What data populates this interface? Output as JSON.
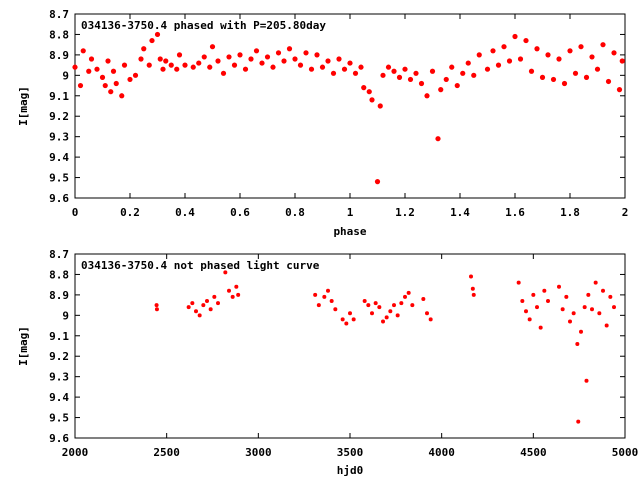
{
  "chart_data": [
    {
      "type": "scatter",
      "title": "034136-3750.4 phased with P=205.80day",
      "xlabel": "phase",
      "ylabel": "I[mag]",
      "xlim": [
        0,
        2
      ],
      "ylim": [
        8.7,
        9.6
      ],
      "y_inverted": true,
      "grid": false,
      "marker_color": "#ff0000",
      "x_ticks": [
        "0",
        "0.2",
        "0.4",
        "0.6",
        "0.8",
        "1",
        "1.2",
        "1.4",
        "1.6",
        "1.8",
        "2"
      ],
      "y_ticks": [
        "8.7",
        "8.8",
        "8.9",
        "9",
        "9.1",
        "9.2",
        "9.3",
        "9.4",
        "9.5",
        "9.6"
      ],
      "series": [
        {
          "points": [
            [
              0.0,
              8.96
            ],
            [
              0.02,
              9.05
            ],
            [
              0.03,
              8.88
            ],
            [
              0.05,
              8.98
            ],
            [
              0.06,
              8.92
            ],
            [
              0.08,
              8.97
            ],
            [
              0.1,
              9.01
            ],
            [
              0.11,
              9.05
            ],
            [
              0.12,
              8.93
            ],
            [
              0.13,
              9.08
            ],
            [
              0.14,
              8.98
            ],
            [
              0.15,
              9.04
            ],
            [
              0.17,
              9.1
            ],
            [
              0.18,
              8.95
            ],
            [
              0.2,
              9.02
            ],
            [
              0.22,
              9.0
            ],
            [
              0.24,
              8.92
            ],
            [
              0.25,
              8.87
            ],
            [
              0.27,
              8.95
            ],
            [
              0.28,
              8.83
            ],
            [
              0.3,
              8.8
            ],
            [
              0.31,
              8.92
            ],
            [
              0.32,
              8.97
            ],
            [
              0.33,
              8.93
            ],
            [
              0.35,
              8.95
            ],
            [
              0.37,
              8.97
            ],
            [
              0.38,
              8.9
            ],
            [
              0.4,
              8.95
            ],
            [
              0.43,
              8.96
            ],
            [
              0.45,
              8.94
            ],
            [
              0.47,
              8.91
            ],
            [
              0.49,
              8.96
            ],
            [
              0.5,
              8.86
            ],
            [
              0.52,
              8.93
            ],
            [
              0.54,
              8.99
            ],
            [
              0.56,
              8.91
            ],
            [
              0.58,
              8.95
            ],
            [
              0.6,
              8.9
            ],
            [
              0.62,
              8.97
            ],
            [
              0.64,
              8.92
            ],
            [
              0.66,
              8.88
            ],
            [
              0.68,
              8.94
            ],
            [
              0.7,
              8.91
            ],
            [
              0.72,
              8.96
            ],
            [
              0.74,
              8.89
            ],
            [
              0.76,
              8.93
            ],
            [
              0.78,
              8.87
            ],
            [
              0.8,
              8.92
            ],
            [
              0.82,
              8.95
            ],
            [
              0.84,
              8.89
            ],
            [
              0.86,
              8.97
            ],
            [
              0.88,
              8.9
            ],
            [
              0.9,
              8.96
            ],
            [
              0.92,
              8.93
            ],
            [
              0.94,
              8.99
            ],
            [
              0.96,
              8.92
            ],
            [
              0.98,
              8.97
            ],
            [
              1.0,
              8.94
            ],
            [
              1.02,
              8.99
            ],
            [
              1.04,
              8.96
            ],
            [
              1.05,
              9.06
            ],
            [
              1.07,
              9.08
            ],
            [
              1.08,
              9.12
            ],
            [
              1.1,
              9.52
            ],
            [
              1.11,
              9.15
            ],
            [
              1.12,
              9.0
            ],
            [
              1.14,
              8.96
            ],
            [
              1.16,
              8.98
            ],
            [
              1.18,
              9.01
            ],
            [
              1.2,
              8.97
            ],
            [
              1.22,
              9.02
            ],
            [
              1.24,
              8.99
            ],
            [
              1.26,
              9.04
            ],
            [
              1.28,
              9.1
            ],
            [
              1.3,
              8.98
            ],
            [
              1.32,
              9.31
            ],
            [
              1.33,
              9.07
            ],
            [
              1.35,
              9.02
            ],
            [
              1.37,
              8.96
            ],
            [
              1.39,
              9.05
            ],
            [
              1.41,
              8.99
            ],
            [
              1.43,
              8.94
            ],
            [
              1.45,
              9.0
            ],
            [
              1.47,
              8.9
            ],
            [
              1.5,
              8.97
            ],
            [
              1.52,
              8.88
            ],
            [
              1.54,
              8.95
            ],
            [
              1.56,
              8.86
            ],
            [
              1.58,
              8.93
            ],
            [
              1.6,
              8.81
            ],
            [
              1.62,
              8.92
            ],
            [
              1.64,
              8.83
            ],
            [
              1.66,
              8.98
            ],
            [
              1.68,
              8.87
            ],
            [
              1.7,
              9.01
            ],
            [
              1.72,
              8.9
            ],
            [
              1.74,
              9.02
            ],
            [
              1.76,
              8.92
            ],
            [
              1.78,
              9.04
            ],
            [
              1.8,
              8.88
            ],
            [
              1.82,
              8.99
            ],
            [
              1.84,
              8.86
            ],
            [
              1.86,
              9.01
            ],
            [
              1.88,
              8.91
            ],
            [
              1.9,
              8.97
            ],
            [
              1.92,
              8.85
            ],
            [
              1.94,
              9.03
            ],
            [
              1.96,
              8.89
            ],
            [
              1.98,
              9.07
            ],
            [
              1.99,
              8.93
            ]
          ]
        }
      ]
    },
    {
      "type": "scatter",
      "title": "034136-3750.4 not phased light curve",
      "xlabel": "hjd0",
      "ylabel": "I[mag]",
      "xlim": [
        2000,
        5000
      ],
      "ylim": [
        8.7,
        9.6
      ],
      "y_inverted": true,
      "grid": false,
      "marker_color": "#ff0000",
      "x_ticks": [
        "2000",
        "2500",
        "3000",
        "3500",
        "4000",
        "4500",
        "5000"
      ],
      "y_ticks": [
        "8.7",
        "8.8",
        "8.9",
        "9",
        "9.1",
        "9.2",
        "9.3",
        "9.4",
        "9.5",
        "9.6"
      ],
      "series": [
        {
          "points": [
            [
              2445,
              8.95
            ],
            [
              2447,
              8.97
            ],
            [
              2620,
              8.96
            ],
            [
              2640,
              8.94
            ],
            [
              2660,
              8.98
            ],
            [
              2680,
              9.0
            ],
            [
              2700,
              8.95
            ],
            [
              2720,
              8.93
            ],
            [
              2740,
              8.97
            ],
            [
              2760,
              8.91
            ],
            [
              2780,
              8.94
            ],
            [
              2820,
              8.79
            ],
            [
              2840,
              8.88
            ],
            [
              2860,
              8.91
            ],
            [
              2880,
              8.86
            ],
            [
              2890,
              8.9
            ],
            [
              3310,
              8.9
            ],
            [
              3330,
              8.95
            ],
            [
              3360,
              8.91
            ],
            [
              3380,
              8.88
            ],
            [
              3400,
              8.93
            ],
            [
              3420,
              8.97
            ],
            [
              3460,
              9.02
            ],
            [
              3480,
              9.04
            ],
            [
              3500,
              8.99
            ],
            [
              3520,
              9.02
            ],
            [
              3580,
              8.93
            ],
            [
              3600,
              8.95
            ],
            [
              3620,
              8.99
            ],
            [
              3640,
              8.94
            ],
            [
              3660,
              8.96
            ],
            [
              3680,
              9.03
            ],
            [
              3700,
              9.01
            ],
            [
              3720,
              8.98
            ],
            [
              3740,
              8.95
            ],
            [
              3760,
              9.0
            ],
            [
              3780,
              8.94
            ],
            [
              3800,
              8.91
            ],
            [
              3820,
              8.89
            ],
            [
              3840,
              8.95
            ],
            [
              3900,
              8.92
            ],
            [
              3920,
              8.99
            ],
            [
              3940,
              9.02
            ],
            [
              4160,
              8.81
            ],
            [
              4170,
              8.87
            ],
            [
              4175,
              8.9
            ],
            [
              4420,
              8.84
            ],
            [
              4440,
              8.93
            ],
            [
              4460,
              8.98
            ],
            [
              4480,
              9.02
            ],
            [
              4500,
              8.9
            ],
            [
              4520,
              8.96
            ],
            [
              4540,
              9.06
            ],
            [
              4560,
              8.88
            ],
            [
              4580,
              8.93
            ],
            [
              4640,
              8.86
            ],
            [
              4660,
              8.97
            ],
            [
              4680,
              8.91
            ],
            [
              4700,
              9.03
            ],
            [
              4720,
              8.99
            ],
            [
              4740,
              9.14
            ],
            [
              4745,
              9.52
            ],
            [
              4760,
              9.08
            ],
            [
              4780,
              8.96
            ],
            [
              4790,
              9.32
            ],
            [
              4800,
              8.9
            ],
            [
              4820,
              8.97
            ],
            [
              4840,
              8.84
            ],
            [
              4860,
              8.99
            ],
            [
              4880,
              8.88
            ],
            [
              4900,
              9.05
            ],
            [
              4920,
              8.91
            ],
            [
              4940,
              8.96
            ]
          ]
        }
      ]
    }
  ]
}
